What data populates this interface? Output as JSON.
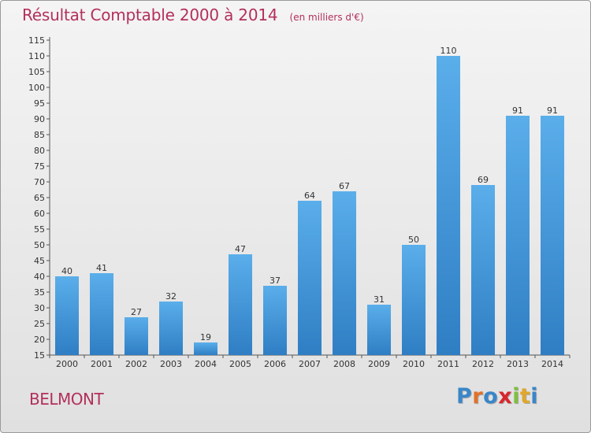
{
  "header": {
    "title": "Résultat Comptable 2000 à 2014",
    "subtitle": "(en milliers d'€)"
  },
  "footer": {
    "commune": "BELMONT",
    "logo": [
      "P",
      "r",
      "o",
      "x",
      "i",
      "t",
      "i"
    ]
  },
  "colors": {
    "title": "#b3305a",
    "bar_top": "#5aaeea",
    "bar_bottom": "#2f7ec4",
    "logo_letters": [
      "#3a86c8",
      "#e0722a",
      "#3a86c8",
      "#d8262b",
      "#7fbf3f",
      "#e0a72a",
      "#3a86c8"
    ]
  },
  "chart_data": {
    "type": "bar",
    "categories": [
      "2000",
      "2001",
      "2002",
      "2003",
      "2004",
      "2005",
      "2006",
      "2007",
      "2008",
      "2009",
      "2010",
      "2011",
      "2012",
      "2013",
      "2014"
    ],
    "values": [
      40,
      41,
      27,
      32,
      19,
      47,
      37,
      64,
      67,
      31,
      50,
      110,
      69,
      91,
      91
    ],
    "ylim": [
      15,
      115
    ],
    "yticks": [
      15,
      20,
      25,
      30,
      35,
      40,
      45,
      50,
      55,
      60,
      65,
      70,
      75,
      80,
      85,
      90,
      95,
      100,
      105,
      110,
      115
    ],
    "grid": false,
    "data_labels": true
  }
}
